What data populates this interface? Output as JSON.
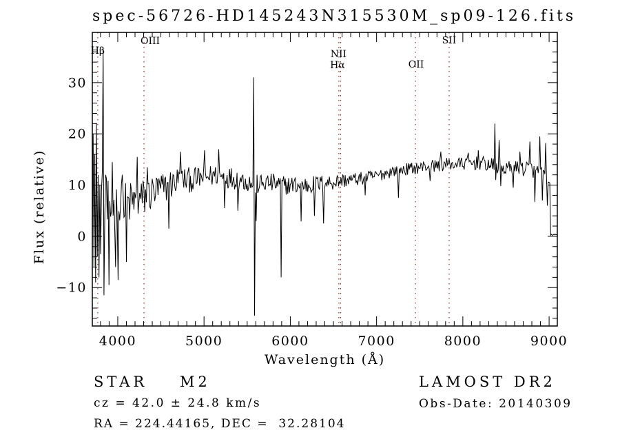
{
  "title": "spec-56726-HD145243N315530M_sp09-126.fits",
  "colors": {
    "background": "#ffffff",
    "trace": "#000000",
    "frame": "#000000",
    "marker_line": "#8b2e20"
  },
  "footer": {
    "class_line": "STAR    M2",
    "cz_line": "cz = 42.0 ± 24.8 km/s",
    "radec_line": "RA = 224.44165, DEC =  32.28104",
    "survey": "LAMOST DR2",
    "obs_date_line": "Obs-Date: 20140309"
  },
  "chart_data": {
    "type": "line",
    "title": "spec-56726-HD145243N315530M_sp09-126.fits",
    "xlabel": "Wavelength (Å)",
    "ylabel": "Flux (relative)",
    "xlim": [
      3705,
      9095
    ],
    "ylim": [
      -17.5,
      39.8
    ],
    "grid": false,
    "x_major_ticks": [
      4000,
      5000,
      6000,
      7000,
      8000,
      9000
    ],
    "x_tick_labels": [
      "4000",
      "5000",
      "6000",
      "7000",
      "8000",
      "9000"
    ],
    "x_minor_step": 100,
    "y_major_ticks": [
      -10,
      0,
      10,
      20,
      30
    ],
    "y_tick_labels": [
      "−10",
      "0",
      "10",
      "20",
      "30"
    ],
    "y_minor_step": 2,
    "line_markers": [
      {
        "label": "Hβ",
        "wavelength": 3768,
        "label_dx": 0,
        "label_baseline_y": 78
      },
      {
        "label": "OIII",
        "wavelength": 4304,
        "label_dx": 9,
        "label_baseline_y": 64
      },
      {
        "label": "NII",
        "wavelength": 6583,
        "label_dx": -3,
        "label_baseline_y": 83
      },
      {
        "label": "Hα",
        "wavelength": 6563,
        "label_dx": -2,
        "label_baseline_y": 99
      },
      {
        "label": "OII",
        "wavelength": 7450,
        "label_dx": 1,
        "label_baseline_y": 98
      },
      {
        "label": "SII",
        "wavelength": 7841,
        "label_dx": 0,
        "label_baseline_y": 63
      }
    ],
    "spectrum": {
      "seed": 12345,
      "n_points": 560,
      "baseline": [
        [
          3705,
          7
        ],
        [
          3760,
          5
        ],
        [
          3850,
          4.5
        ],
        [
          3950,
          5
        ],
        [
          4050,
          5.5
        ],
        [
          4150,
          6.5
        ],
        [
          4250,
          7
        ],
        [
          4400,
          8.5
        ],
        [
          4550,
          9.5
        ],
        [
          4700,
          11
        ],
        [
          4850,
          11
        ],
        [
          5000,
          11.5
        ],
        [
          5150,
          12
        ],
        [
          5300,
          11.5
        ],
        [
          5450,
          11
        ],
        [
          5600,
          10
        ],
        [
          5750,
          10.5
        ],
        [
          5900,
          10
        ],
        [
          6050,
          10
        ],
        [
          6200,
          10
        ],
        [
          6350,
          10.3
        ],
        [
          6500,
          10.6
        ],
        [
          6650,
          11
        ],
        [
          6800,
          11.2
        ],
        [
          7000,
          11.8
        ],
        [
          7200,
          12.8
        ],
        [
          7400,
          13.2
        ],
        [
          7600,
          13.7
        ],
        [
          7800,
          14
        ],
        [
          8000,
          14.2
        ],
        [
          8200,
          14.3
        ],
        [
          8350,
          13.8
        ],
        [
          8500,
          13.2
        ],
        [
          8650,
          13.3
        ],
        [
          8800,
          13.2
        ],
        [
          8900,
          12.5
        ],
        [
          8995,
          10.5
        ],
        [
          9008,
          10
        ],
        [
          9018,
          0.3
        ],
        [
          9095,
          0.3
        ]
      ],
      "noise_amp": [
        [
          3705,
          11
        ],
        [
          3800,
          9
        ],
        [
          3900,
          6.5
        ],
        [
          4000,
          5.5
        ],
        [
          4150,
          4.5
        ],
        [
          4350,
          3.8
        ],
        [
          4550,
          3.2
        ],
        [
          4750,
          2.6
        ],
        [
          5000,
          2.2
        ],
        [
          5300,
          2.2
        ],
        [
          5600,
          2.0
        ],
        [
          5900,
          1.9
        ],
        [
          6200,
          1.8
        ],
        [
          6500,
          1.6
        ],
        [
          6800,
          1.3
        ],
        [
          7100,
          1.2
        ],
        [
          7500,
          1.2
        ],
        [
          7900,
          1.3
        ],
        [
          8300,
          1.4
        ],
        [
          8600,
          1.5
        ],
        [
          8900,
          1.8
        ],
        [
          9005,
          0.8
        ],
        [
          9020,
          0.15
        ],
        [
          9095,
          0.15
        ]
      ],
      "features": [
        [
          3715,
          20
        ],
        [
          3725,
          -6
        ],
        [
          3735,
          16
        ],
        [
          3745,
          -9
        ],
        [
          3755,
          22
        ],
        [
          3762,
          -4
        ],
        [
          3775,
          12
        ],
        [
          3785,
          -8
        ],
        [
          3828,
          36.8
        ],
        [
          3838,
          -11.5
        ],
        [
          3864,
          12
        ],
        [
          3896,
          -9.5
        ],
        [
          3936,
          14.5
        ],
        [
          3976,
          -6
        ],
        [
          4008,
          -8.5
        ],
        [
          4056,
          12
        ],
        [
          4104,
          -5
        ],
        [
          4230,
          15.5
        ],
        [
          4340,
          13.5
        ],
        [
          4590,
          1.5
        ],
        [
          4727,
          16.5
        ],
        [
          5006,
          16.8
        ],
        [
          5166,
          17
        ],
        [
          5240,
          5.5
        ],
        [
          5390,
          5
        ],
        [
          5577,
          31
        ],
        [
          5587,
          -15.5
        ],
        [
          5600,
          3
        ],
        [
          5896,
          -8
        ],
        [
          6128,
          2.9
        ],
        [
          6280,
          4
        ],
        [
          6390,
          2.5
        ],
        [
          6868,
          8
        ],
        [
          7250,
          7.5
        ],
        [
          7620,
          10.8
        ],
        [
          7747,
          16.5
        ],
        [
          8067,
          16.3
        ],
        [
          8180,
          16.8
        ],
        [
          8368,
          22
        ],
        [
          8380,
          11
        ],
        [
          8416,
          18.8
        ],
        [
          8440,
          9.8
        ],
        [
          8580,
          9.5
        ],
        [
          8660,
          16.5
        ],
        [
          8776,
          18.5
        ],
        [
          8830,
          6.7
        ],
        [
          8890,
          19.5
        ],
        [
          8925,
          7
        ],
        [
          8960,
          18.2
        ],
        [
          8975,
          6
        ]
      ]
    }
  }
}
